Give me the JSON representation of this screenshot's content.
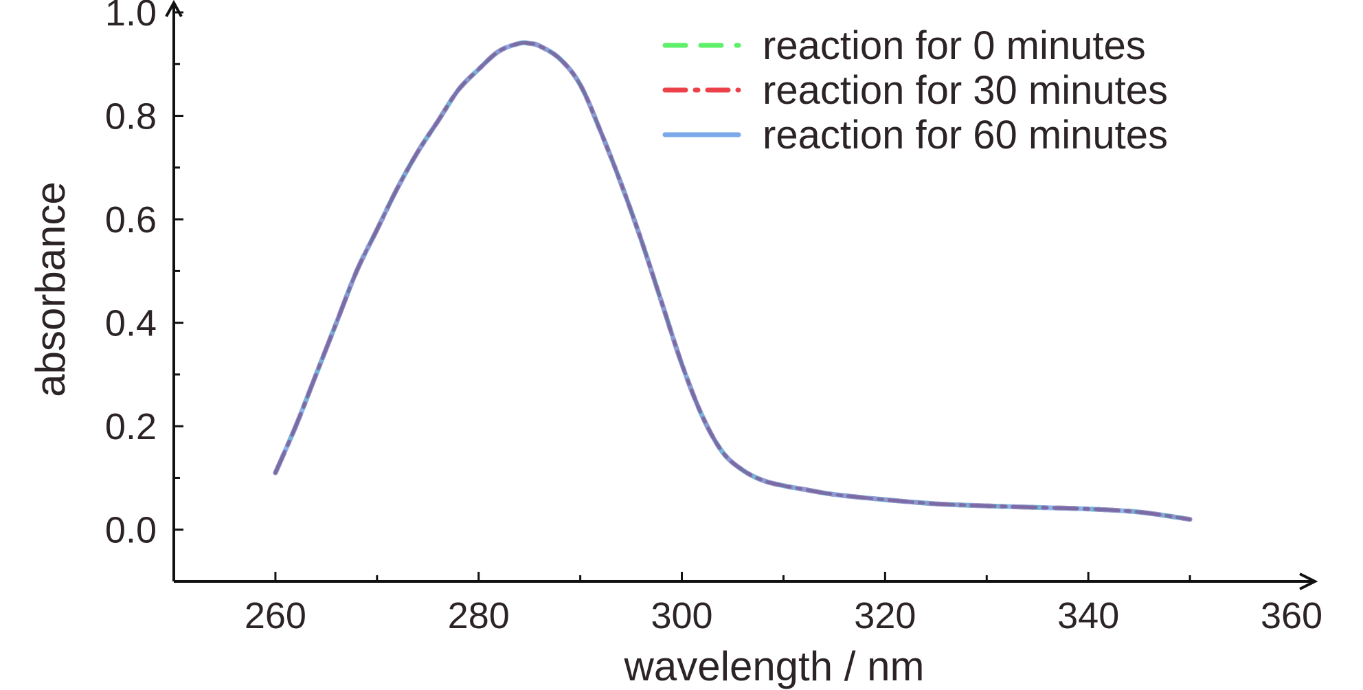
{
  "chart_data": {
    "type": "line",
    "title": "",
    "xlabel": "wavelength / nm",
    "ylabel": "absorbance",
    "xlim": [
      250,
      360
    ],
    "ylim": [
      -0.1,
      1.0
    ],
    "x_ticks": [
      260,
      280,
      300,
      320,
      340,
      360
    ],
    "y_ticks": [
      0.0,
      0.2,
      0.4,
      0.6,
      0.8,
      1.0
    ],
    "x_tick_labels": [
      "260",
      "280",
      "300",
      "320",
      "340",
      "360"
    ],
    "y_tick_labels": [
      "0.0",
      "0.2",
      "0.4",
      "0.6",
      "0.8",
      "1.0"
    ],
    "grid": false,
    "legend_position": "top-right",
    "x": [
      260,
      262,
      264,
      266,
      268,
      270,
      272,
      274,
      276,
      278,
      280,
      282,
      284,
      285,
      286,
      288,
      290,
      292,
      294,
      296,
      298,
      300,
      302,
      304,
      306,
      308,
      310,
      312,
      315,
      320,
      325,
      330,
      335,
      340,
      345,
      350
    ],
    "series": [
      {
        "name": "reaction for 0 minutes",
        "color": "#5ef06a",
        "dash": "long-dash",
        "values": [
          0.11,
          0.2,
          0.3,
          0.4,
          0.5,
          0.58,
          0.66,
          0.73,
          0.79,
          0.85,
          0.89,
          0.925,
          0.94,
          0.94,
          0.935,
          0.91,
          0.86,
          0.77,
          0.67,
          0.56,
          0.44,
          0.32,
          0.22,
          0.15,
          0.115,
          0.095,
          0.085,
          0.078,
          0.068,
          0.058,
          0.05,
          0.046,
          0.043,
          0.04,
          0.034,
          0.02
        ]
      },
      {
        "name": "reaction for 30 minutes",
        "color": "#ec4148",
        "dash": "dash-dot",
        "values": [
          0.11,
          0.2,
          0.3,
          0.4,
          0.5,
          0.58,
          0.66,
          0.73,
          0.79,
          0.85,
          0.89,
          0.925,
          0.94,
          0.94,
          0.935,
          0.91,
          0.86,
          0.77,
          0.67,
          0.56,
          0.44,
          0.32,
          0.22,
          0.15,
          0.115,
          0.095,
          0.085,
          0.078,
          0.068,
          0.058,
          0.05,
          0.046,
          0.043,
          0.04,
          0.034,
          0.02
        ]
      },
      {
        "name": "reaction for 60 minutes",
        "color": "#7aa8e8",
        "dash": "solid",
        "values": [
          0.11,
          0.2,
          0.3,
          0.4,
          0.5,
          0.58,
          0.66,
          0.73,
          0.79,
          0.85,
          0.89,
          0.925,
          0.94,
          0.94,
          0.935,
          0.91,
          0.86,
          0.77,
          0.67,
          0.56,
          0.44,
          0.32,
          0.22,
          0.15,
          0.115,
          0.095,
          0.085,
          0.078,
          0.068,
          0.058,
          0.05,
          0.046,
          0.043,
          0.04,
          0.034,
          0.02
        ]
      }
    ]
  }
}
